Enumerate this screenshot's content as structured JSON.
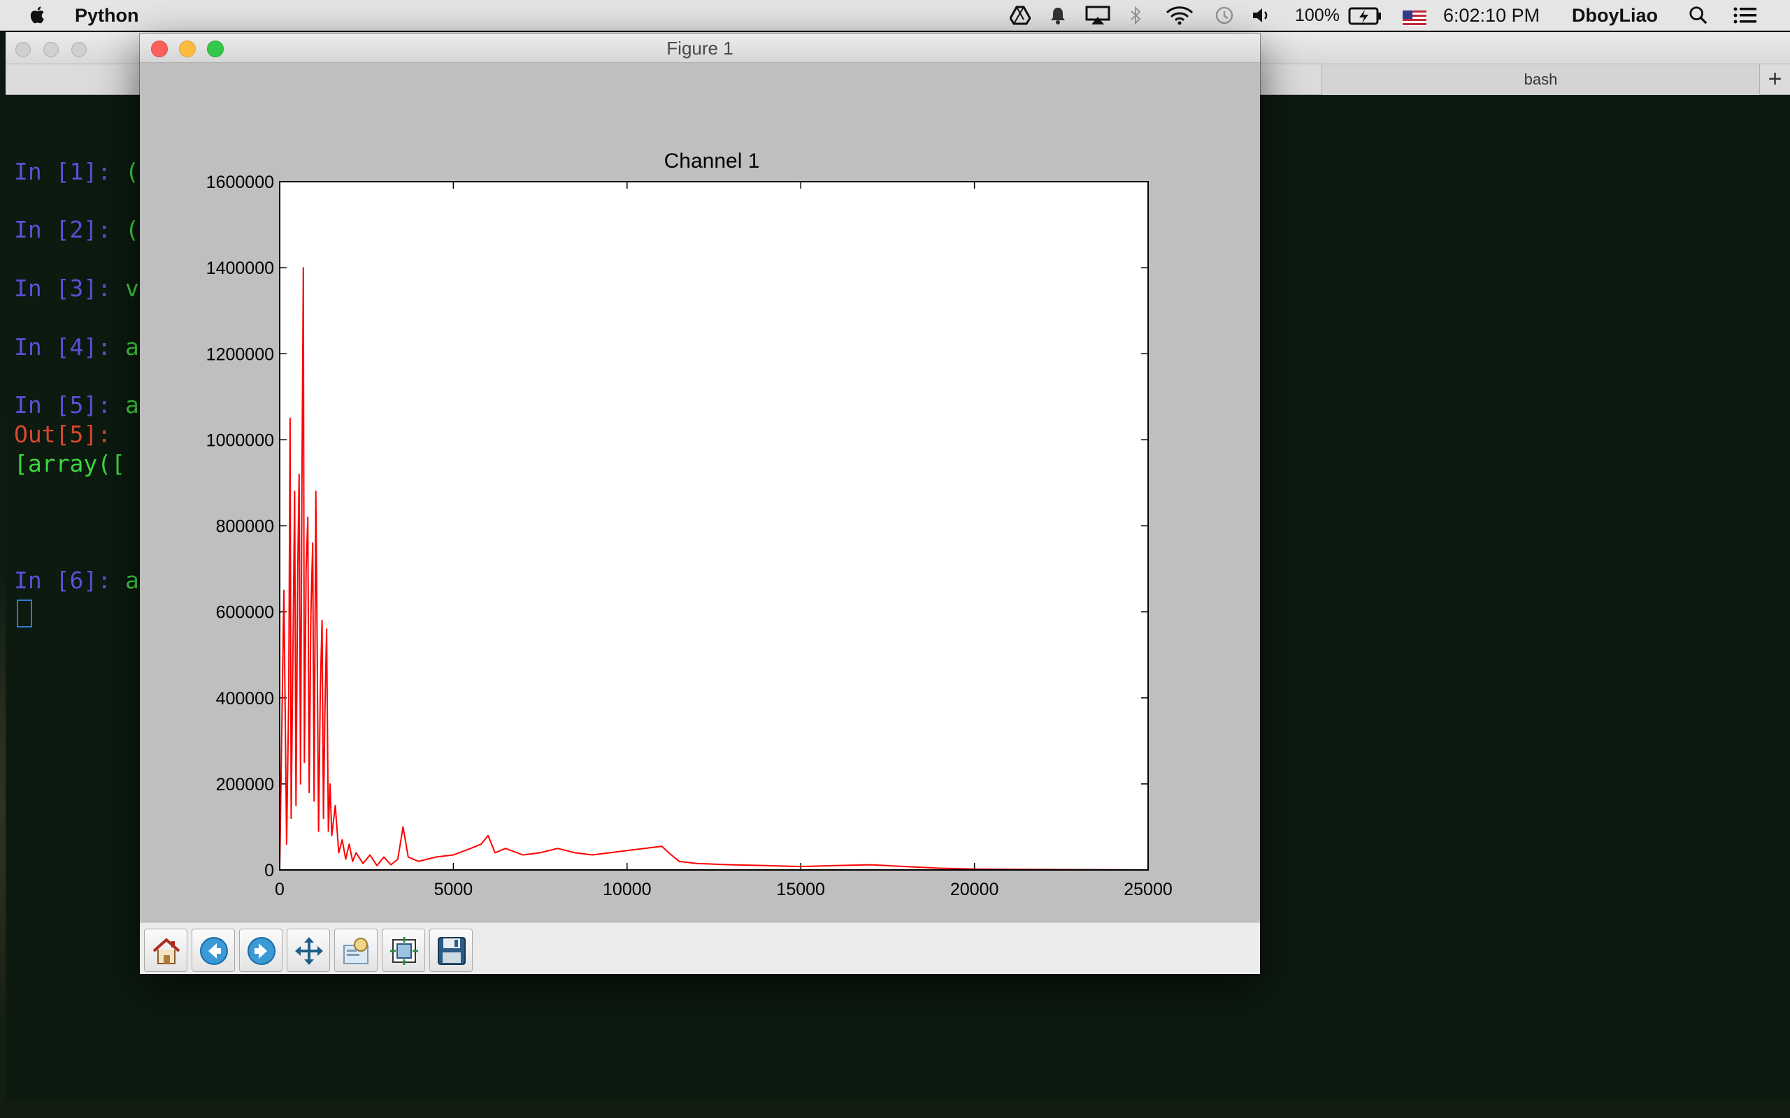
{
  "menubar": {
    "app_name": "Python",
    "battery": "100%",
    "time": "6:02:10 PM",
    "user": "DboyLiao"
  },
  "terminal": {
    "tab_label": "bash",
    "add_tab": "+",
    "lines": [
      {
        "prompt": "In [1]: ",
        "text": "("
      },
      {
        "prompt": "In [2]: ",
        "text": "("
      },
      {
        "prompt": "In [3]: ",
        "text": "v"
      },
      {
        "prompt": "In [4]: ",
        "text": "a"
      },
      {
        "prompt": "In [5]: ",
        "text": "a"
      },
      {
        "prompt": "Out[5]:",
        "text": ""
      },
      {
        "prompt": "",
        "text": "[array(["
      },
      {
        "prompt": "In [6]: ",
        "text": "a"
      }
    ]
  },
  "figure": {
    "window_title": "Figure 1",
    "toolbar": {
      "home": "home-icon",
      "back": "back-arrow-icon",
      "forward": "forward-arrow-icon",
      "pan": "pan-icon",
      "zoom": "zoom-to-rect-icon",
      "subplots": "configure-subplots-icon",
      "save": "save-icon"
    }
  },
  "chart_data": {
    "type": "line",
    "title": "Channel 1",
    "xlabel": "",
    "ylabel": "",
    "xlim": [
      0,
      25000
    ],
    "ylim": [
      0,
      1600000
    ],
    "x_ticks": [
      0,
      5000,
      10000,
      15000,
      20000,
      25000
    ],
    "y_ticks": [
      0,
      200000,
      400000,
      600000,
      800000,
      1000000,
      1200000,
      1400000,
      1600000
    ],
    "grid": false,
    "legend": "none",
    "line_color": "#ff0000",
    "series": [
      {
        "values_description_points": [
          [
            0,
            0
          ],
          [
            120,
            650000
          ],
          [
            200,
            60000
          ],
          [
            260,
            400000
          ],
          [
            300,
            1050000
          ],
          [
            330,
            120000
          ],
          [
            380,
            500000
          ],
          [
            430,
            880000
          ],
          [
            470,
            150000
          ],
          [
            520,
            700000
          ],
          [
            560,
            920000
          ],
          [
            600,
            200000
          ],
          [
            640,
            900000
          ],
          [
            680,
            1400000
          ],
          [
            710,
            250000
          ],
          [
            760,
            700000
          ],
          [
            810,
            820000
          ],
          [
            850,
            180000
          ],
          [
            900,
            600000
          ],
          [
            950,
            760000
          ],
          [
            990,
            160000
          ],
          [
            1040,
            880000
          ],
          [
            1080,
            500000
          ],
          [
            1120,
            90000
          ],
          [
            1170,
            420000
          ],
          [
            1220,
            580000
          ],
          [
            1260,
            120000
          ],
          [
            1300,
            360000
          ],
          [
            1350,
            560000
          ],
          [
            1400,
            90000
          ],
          [
            1450,
            200000
          ],
          [
            1500,
            80000
          ],
          [
            1600,
            150000
          ],
          [
            1700,
            40000
          ],
          [
            1800,
            70000
          ],
          [
            1900,
            25000
          ],
          [
            2000,
            60000
          ],
          [
            2100,
            20000
          ],
          [
            2200,
            40000
          ],
          [
            2400,
            15000
          ],
          [
            2600,
            35000
          ],
          [
            2800,
            10000
          ],
          [
            3000,
            30000
          ],
          [
            3200,
            12000
          ],
          [
            3400,
            25000
          ],
          [
            3550,
            100000
          ],
          [
            3700,
            30000
          ],
          [
            4000,
            20000
          ],
          [
            4500,
            30000
          ],
          [
            5000,
            35000
          ],
          [
            5500,
            50000
          ],
          [
            5800,
            60000
          ],
          [
            6000,
            80000
          ],
          [
            6200,
            40000
          ],
          [
            6500,
            50000
          ],
          [
            7000,
            35000
          ],
          [
            7500,
            40000
          ],
          [
            8000,
            50000
          ],
          [
            8500,
            40000
          ],
          [
            9000,
            35000
          ],
          [
            9500,
            40000
          ],
          [
            10000,
            45000
          ],
          [
            10500,
            50000
          ],
          [
            11000,
            55000
          ],
          [
            11200,
            40000
          ],
          [
            11500,
            20000
          ],
          [
            12000,
            15000
          ],
          [
            13000,
            12000
          ],
          [
            14000,
            10000
          ],
          [
            15000,
            8000
          ],
          [
            16000,
            10000
          ],
          [
            17000,
            12000
          ],
          [
            18000,
            8000
          ],
          [
            19000,
            4000
          ],
          [
            20000,
            2000
          ],
          [
            22000,
            1000
          ],
          [
            24000,
            500
          ],
          [
            25000,
            0
          ]
        ]
      }
    ]
  }
}
